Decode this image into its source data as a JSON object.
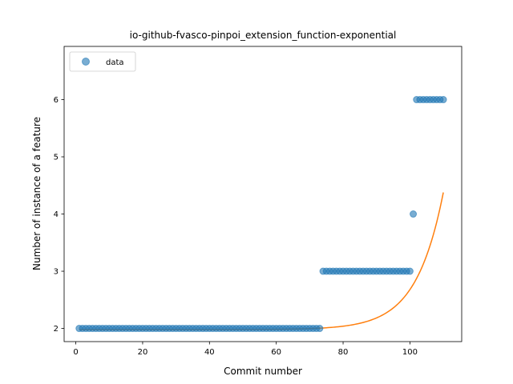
{
  "chart_data": {
    "type": "scatter",
    "title": "io-github-fvasco-pinpoi_extension_function-exponential",
    "xlabel": "Commit number",
    "ylabel": "Number of instance of a feature",
    "xlim": [
      -3.5,
      115.5
    ],
    "ylim": [
      1.77,
      6.93
    ],
    "xticks": [
      0,
      20,
      40,
      60,
      80,
      100
    ],
    "yticks": [
      2,
      3,
      4,
      5,
      6
    ],
    "legend": {
      "placement": "top-left",
      "entries": [
        "data"
      ]
    },
    "colors": {
      "points": "#1f77b4",
      "fit": "#ff7f0e"
    },
    "series": [
      {
        "name": "data",
        "kind": "points",
        "segments": [
          {
            "x_from": 1,
            "x_to": 73,
            "y": 2
          },
          {
            "x_from": 74,
            "x_to": 100,
            "y": 3
          },
          {
            "x_from": 101,
            "x_to": 101,
            "y": 4
          },
          {
            "x_from": 102,
            "x_to": 110,
            "y": 6
          }
        ]
      },
      {
        "kind": "line",
        "model": "exponential",
        "params": {
          "a": 1.9797,
          "b": 3.12e-06,
          "c": 0.1232
        },
        "x_range": [
          1,
          110
        ]
      }
    ]
  }
}
